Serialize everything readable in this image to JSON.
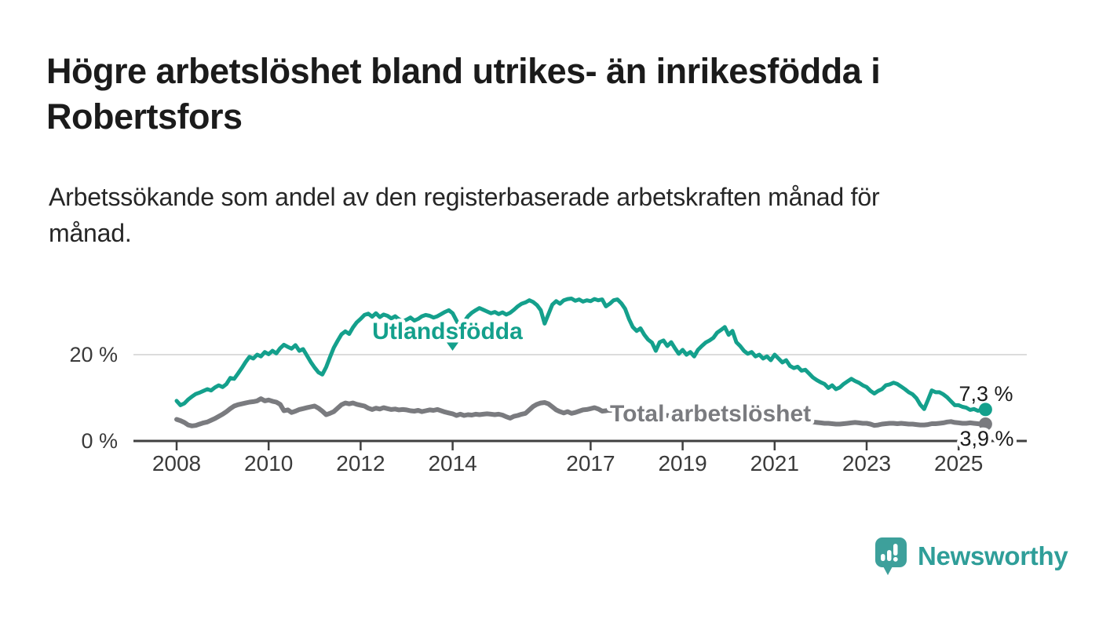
{
  "header": {
    "title": "Högre arbetslöshet bland utrikes- än inrikesfödda i Robertsfors",
    "title_lines": [
      "Högre arbetslöshet bland utrikes- än inrikesfödda i",
      "Robertsfors"
    ],
    "subtitle": "Arbetssökande som andel av den registerbaserade arbetskraften månad för månad.",
    "subtitle_lines": [
      "Arbetssökande som andel av den registerbaserade arbetskraften månad för",
      "månad."
    ]
  },
  "branding": {
    "logo_text": "Newsworthy",
    "logo_color": "#2f9e99",
    "bubble_color": "#3da09b",
    "bubble_icon": "bar-chart-exclamation-speech-bubble"
  },
  "chart_data": {
    "type": "line",
    "title": "Högre arbetslöshet bland utrikes- än inrikesfödda i Robertsfors",
    "subtitle": "Arbetssökande som andel av den registerbaserade arbetskraften månad för månad.",
    "unit": "%",
    "frequency": "monthly",
    "x_start": "2008-01",
    "x_end": "2025-08",
    "grid": "horizontal-20-only",
    "legend_position": "inline-labels-on-lines",
    "x_axis": {
      "ticks": [
        2008,
        2010,
        2012,
        2014,
        2017,
        2019,
        2021,
        2023,
        2025
      ]
    },
    "y_axis": {
      "ylim": [
        0,
        35
      ],
      "ticks": [
        {
          "value": 0,
          "label": "0 %",
          "gridline": false
        },
        {
          "value": 20,
          "label": "20 %",
          "gridline": true
        }
      ]
    },
    "series": [
      {
        "name": "Utlandsfödda",
        "color": "#14a08c",
        "end_label": "7,3 %",
        "end_value": 7.3,
        "values": [
          9.3,
          8.3,
          8.7,
          9.6,
          10.3,
          10.9,
          11.2,
          11.6,
          12.0,
          11.7,
          12.4,
          12.9,
          12.5,
          13.2,
          14.6,
          14.4,
          15.6,
          16.9,
          18.3,
          19.5,
          19.1,
          20.0,
          19.6,
          20.6,
          20.1,
          20.9,
          20.3,
          21.5,
          22.3,
          21.8,
          21.4,
          22.2,
          20.9,
          21.3,
          19.8,
          18.3,
          17.0,
          15.9,
          15.4,
          17.1,
          19.4,
          21.6,
          23.2,
          24.7,
          25.4,
          24.8,
          26.3,
          27.5,
          28.3,
          29.2,
          29.5,
          28.8,
          29.6,
          28.7,
          29.3,
          29.0,
          28.4,
          28.9,
          28.2,
          27.7,
          28.1,
          28.6,
          27.9,
          28.3,
          28.9,
          29.2,
          29.0,
          28.6,
          28.9,
          29.4,
          29.9,
          30.3,
          29.6,
          27.9,
          26.2,
          27.6,
          28.9,
          29.7,
          30.3,
          30.8,
          30.4,
          30.0,
          29.6,
          29.9,
          29.4,
          29.8,
          29.3,
          29.7,
          30.4,
          31.2,
          31.8,
          32.1,
          32.6,
          32.2,
          31.5,
          30.3,
          27.2,
          29.4,
          31.6,
          32.4,
          31.8,
          32.6,
          32.9,
          33.0,
          32.5,
          32.8,
          32.3,
          32.6,
          32.4,
          32.9,
          32.6,
          32.8,
          31.2,
          31.8,
          32.6,
          32.8,
          31.9,
          30.6,
          28.3,
          26.4,
          25.5,
          26.1,
          24.6,
          23.5,
          22.8,
          20.9,
          22.9,
          23.3,
          22.0,
          22.9,
          21.5,
          20.2,
          21.1,
          20.0,
          20.6,
          19.6,
          21.1,
          22.0,
          22.8,
          23.3,
          23.9,
          25.1,
          25.7,
          26.4,
          24.6,
          25.5,
          22.9,
          22.0,
          20.9,
          20.2,
          20.6,
          19.6,
          20.0,
          19.1,
          19.6,
          18.7,
          20.0,
          19.1,
          18.2,
          18.7,
          17.4,
          16.9,
          17.2,
          16.3,
          16.5,
          15.6,
          14.7,
          14.1,
          13.6,
          13.2,
          12.3,
          12.9,
          12.0,
          12.4,
          13.2,
          13.8,
          14.4,
          13.9,
          13.5,
          12.9,
          12.5,
          11.6,
          11.0,
          11.6,
          12.0,
          12.9,
          13.1,
          13.5,
          13.2,
          12.6,
          12.0,
          11.3,
          10.8,
          9.9,
          8.4,
          7.4,
          9.5,
          11.7,
          11.3,
          11.3,
          10.8,
          10.1,
          9.2,
          8.3,
          8.3,
          7.9,
          7.7,
          7.2,
          7.4,
          7.0,
          7.2,
          7.3
        ]
      },
      {
        "name": "Total arbetslöshet",
        "color": "#7a7b7f",
        "end_label": "3,9 %",
        "end_value": 3.9,
        "values": [
          5.0,
          4.7,
          4.3,
          3.7,
          3.5,
          3.6,
          3.9,
          4.2,
          4.4,
          4.8,
          5.2,
          5.7,
          6.2,
          6.8,
          7.5,
          8.1,
          8.4,
          8.6,
          8.8,
          9.0,
          9.1,
          9.3,
          9.8,
          9.3,
          9.5,
          9.2,
          9.0,
          8.5,
          7.0,
          7.2,
          6.6,
          6.9,
          7.3,
          7.5,
          7.7,
          7.9,
          8.1,
          7.6,
          6.9,
          6.1,
          6.4,
          6.8,
          7.6,
          8.4,
          8.8,
          8.6,
          8.8,
          8.5,
          8.3,
          8.1,
          7.6,
          7.3,
          7.6,
          7.4,
          7.7,
          7.5,
          7.3,
          7.4,
          7.2,
          7.3,
          7.2,
          7.0,
          6.9,
          7.1,
          6.8,
          7.0,
          7.2,
          7.1,
          7.3,
          7.0,
          6.7,
          6.5,
          6.3,
          5.9,
          6.2,
          5.9,
          6.1,
          6.0,
          6.2,
          6.1,
          6.2,
          6.3,
          6.2,
          6.1,
          6.2,
          6.0,
          5.6,
          5.3,
          5.7,
          5.9,
          6.2,
          6.4,
          7.2,
          8.0,
          8.5,
          8.8,
          8.9,
          8.6,
          7.9,
          7.2,
          6.8,
          6.5,
          6.8,
          6.4,
          6.6,
          6.9,
          7.2,
          7.3,
          7.5,
          7.7,
          7.4,
          6.9,
          7.0,
          7.2,
          7.0,
          6.8,
          6.9,
          6.7,
          6.6,
          6.5,
          6.4,
          6.2,
          6.1,
          6.0,
          5.9,
          5.8,
          5.9,
          6.0,
          5.9,
          5.8,
          5.7,
          5.6,
          5.7,
          5.6,
          5.5,
          5.4,
          5.5,
          5.6,
          5.7,
          5.6,
          5.5,
          5.6,
          5.7,
          5.8,
          5.9,
          6.0,
          6.2,
          6.4,
          6.5,
          6.4,
          6.3,
          6.1,
          6.0,
          5.8,
          5.7,
          5.6,
          5.5,
          5.4,
          5.2,
          5.1,
          5.0,
          4.9,
          4.8,
          4.7,
          4.6,
          4.5,
          4.4,
          4.3,
          4.2,
          4.1,
          4.1,
          4.0,
          3.9,
          3.9,
          4.0,
          4.1,
          4.2,
          4.3,
          4.2,
          4.1,
          4.1,
          3.9,
          3.6,
          3.7,
          3.9,
          4.0,
          4.1,
          4.1,
          4.0,
          4.1,
          4.0,
          3.9,
          3.9,
          3.8,
          3.7,
          3.7,
          3.8,
          4.0,
          4.0,
          4.1,
          4.2,
          4.4,
          4.5,
          4.3,
          4.2,
          4.1,
          4.1,
          4.2,
          4.1,
          4.0,
          3.9,
          3.9
        ]
      }
    ]
  }
}
